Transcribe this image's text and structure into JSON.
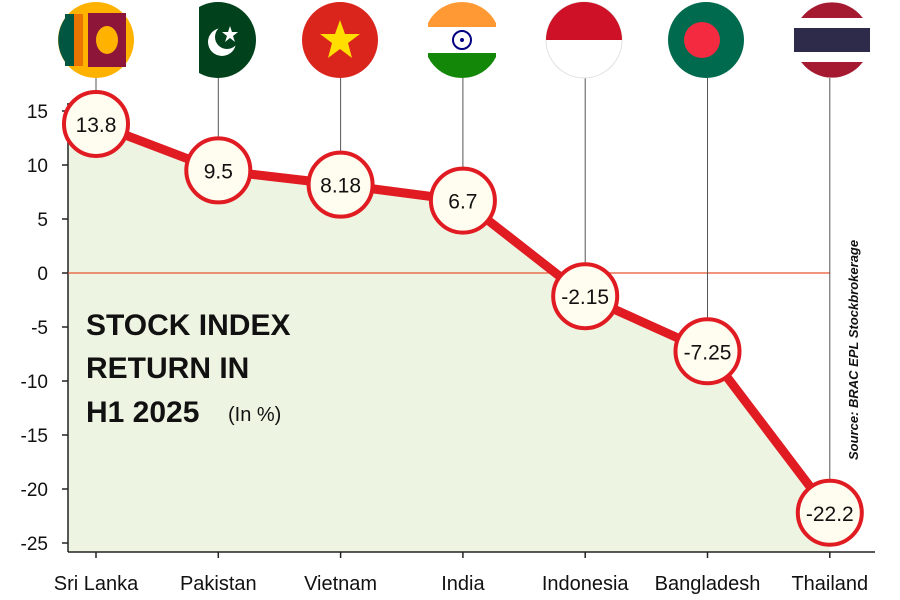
{
  "chart_data": {
    "type": "line",
    "title_lines": [
      "STOCK INDEX",
      "RETURN IN",
      "H1 2025"
    ],
    "unit": "(In %)",
    "source": "Source: BRAC EPL Stockbrokerage",
    "categories": [
      "Sri Lanka",
      "Pakistan",
      "Vietnam",
      "India",
      "Indonesia",
      "Bangladesh",
      "Thailand"
    ],
    "values": [
      13.8,
      9.5,
      8.18,
      6.7,
      -2.15,
      -7.25,
      -22.2
    ],
    "value_labels": [
      "13.8",
      "9.5",
      "8.18",
      "6.7",
      "-2.15",
      "-7.25",
      "-22.2"
    ],
    "yticks": [
      15,
      10,
      5,
      0,
      -5,
      -10,
      -15,
      -20,
      -25
    ],
    "ytick_labels": [
      "15",
      "10",
      "5",
      "0",
      "-5",
      "-10",
      "-15",
      "-20",
      "-25"
    ],
    "ylim": [
      -25,
      15
    ],
    "flags": [
      "sri-lanka-flag-icon",
      "pakistan-flag-icon",
      "vietnam-flag-icon",
      "india-flag-icon",
      "indonesia-flag-icon",
      "bangladesh-flag-icon",
      "thailand-flag-icon"
    ],
    "colors": {
      "line": "#e01b22",
      "area": "#eef4e2",
      "zero_line": "#e6562e",
      "zero_label": "#d81e24",
      "marker_fill": "#fffdf0"
    }
  }
}
